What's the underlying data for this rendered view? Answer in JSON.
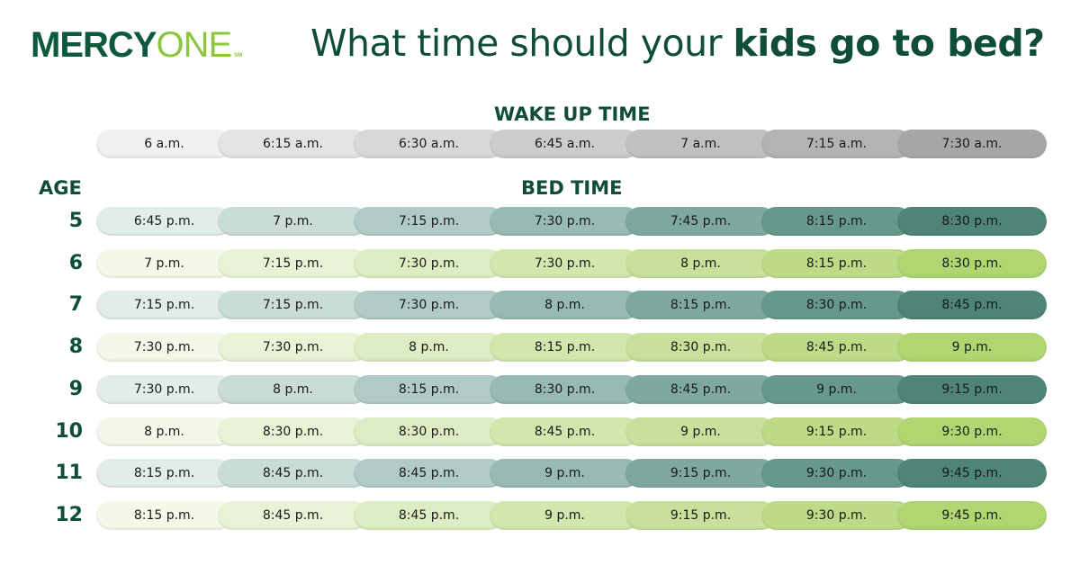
{
  "logo": {
    "text_dark": "MERCY",
    "text_light": "ONE",
    "mark": "SM"
  },
  "title": {
    "regular": "What time should your ",
    "bold": "kids go to bed?"
  },
  "wake_header": "WAKE UP TIME",
  "age_header": "AGE",
  "bed_header": "BED TIME",
  "wake_times": [
    "6 a.m.",
    "6:15 a.m.",
    "6:30 a.m.",
    "6:45 a.m.",
    "7 a.m.",
    "7:15 a.m.",
    "7:30 a.m."
  ],
  "colors": {
    "wake": [
      "#f0f0f0",
      "#e3e3e3",
      "#d8d8d8",
      "#cccccc",
      "#c0c0c0",
      "#b3b3b3",
      "#a7a7a7"
    ],
    "teal": [
      "#e2ecea",
      "#c9dcd8",
      "#b0cbc5",
      "#97bab2",
      "#7fa99f",
      "#66998c",
      "#4e8576"
    ],
    "green": [
      "#f3f8e9",
      "#e8f2d5",
      "#ddecc2",
      "#d2e6ae",
      "#c8e09b",
      "#bddb87",
      "#b0d672"
    ]
  },
  "rows": [
    {
      "age": "5",
      "times": [
        "6:45 p.m.",
        "7 p.m.",
        "7:15 p.m.",
        "7:30 p.m.",
        "7:45 p.m.",
        "8:15 p.m.",
        "8:30 p.m."
      ]
    },
    {
      "age": "6",
      "times": [
        "7 p.m.",
        "7:15 p.m.",
        "7:30 p.m.",
        "7:30 p.m.",
        "8 p.m.",
        "8:15 p.m.",
        "8:30 p.m."
      ]
    },
    {
      "age": "7",
      "times": [
        "7:15 p.m.",
        "7:15 p.m.",
        "7:30 p.m.",
        "8 p.m.",
        "8:15 p.m.",
        "8:30 p.m.",
        "8:45 p.m."
      ]
    },
    {
      "age": "8",
      "times": [
        "7:30 p.m.",
        "7:30 p.m.",
        "8 p.m.",
        "8:15 p.m.",
        "8:30 p.m.",
        "8:45 p.m.",
        "9 p.m."
      ]
    },
    {
      "age": "9",
      "times": [
        "7:30 p.m.",
        "8 p.m.",
        "8:15 p.m.",
        "8:30 p.m.",
        "8:45 p.m.",
        "9 p.m.",
        "9:15 p.m."
      ]
    },
    {
      "age": "10",
      "times": [
        "8 p.m.",
        "8:30 p.m.",
        "8:30 p.m.",
        "8:45 p.m.",
        "9 p.m.",
        "9:15 p.m.",
        "9:30 p.m."
      ]
    },
    {
      "age": "11",
      "times": [
        "8:15 p.m.",
        "8:45 p.m.",
        "8:45 p.m.",
        "9 p.m.",
        "9:15 p.m.",
        "9:30 p.m.",
        "9:45 p.m."
      ]
    },
    {
      "age": "12",
      "times": [
        "8:15 p.m.",
        "8:45 p.m.",
        "8:45 p.m.",
        "9 p.m.",
        "9:15 p.m.",
        "9:30 p.m.",
        "9:45 p.m."
      ]
    }
  ]
}
